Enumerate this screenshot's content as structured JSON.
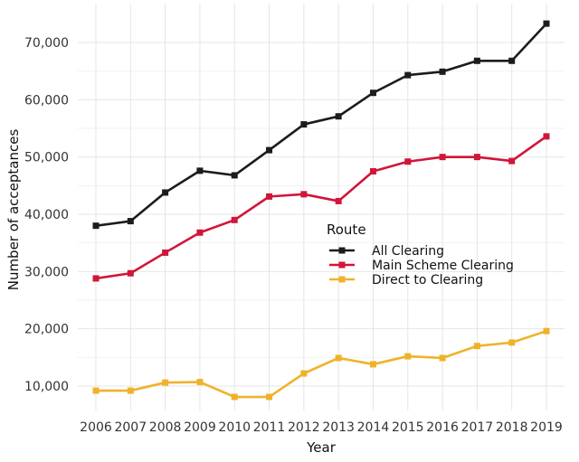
{
  "chart_data": {
    "type": "line",
    "xlabel": "Year",
    "ylabel": "Number of acceptances",
    "x": [
      2006,
      2007,
      2008,
      2009,
      2010,
      2011,
      2012,
      2013,
      2014,
      2015,
      2016,
      2017,
      2018,
      2019
    ],
    "x_tick_labels": [
      "2006",
      "2007",
      "2008",
      "2009",
      "2010",
      "2011",
      "2012",
      "2013",
      "2014",
      "2015",
      "2016",
      "2017",
      "2018",
      "2019"
    ],
    "ylim": [
      5000,
      77000
    ],
    "y_ticks": [
      10000,
      20000,
      30000,
      40000,
      50000,
      60000,
      70000
    ],
    "y_tick_labels": [
      "10,000",
      "20,000",
      "30,000",
      "40,000",
      "50,000",
      "60,000",
      "70,000"
    ],
    "grid": true,
    "legend": {
      "title": "Route",
      "placement": "center-right"
    },
    "series": [
      {
        "name": "All Clearing",
        "color": "#1c1c1c",
        "values": [
          38000,
          38800,
          43800,
          47600,
          46800,
          51200,
          55700,
          57100,
          61200,
          64300,
          64900,
          66800,
          66800,
          73300
        ]
      },
      {
        "name": "Main Scheme Clearing",
        "color": "#d0163a",
        "values": [
          28800,
          29700,
          33300,
          36800,
          39000,
          43100,
          43500,
          42300,
          47500,
          49200,
          50000,
          50000,
          49300,
          53600
        ]
      },
      {
        "name": "Direct to Clearing",
        "color": "#f0b22a",
        "values": [
          9200,
          9200,
          10600,
          10700,
          8100,
          8100,
          12200,
          14900,
          13800,
          15200,
          14900,
          17000,
          17600,
          19600
        ]
      }
    ]
  }
}
